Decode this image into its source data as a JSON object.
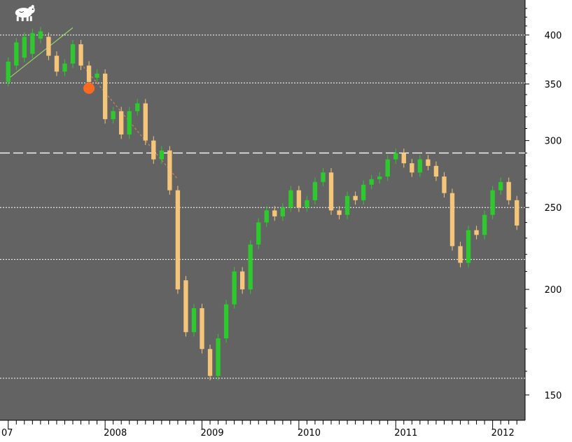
{
  "chart_data": {
    "type": "candlestick",
    "title": "",
    "xlabel": "",
    "ylabel": "",
    "y_scale": "log",
    "ylim": [
      140,
      440
    ],
    "xlim": [
      "2007-01",
      "2012-04"
    ],
    "x_tick_labels": [
      "07",
      "2008",
      "2009",
      "2010",
      "2011",
      "2012"
    ],
    "y_tick_values": [
      150,
      200,
      250,
      300,
      350,
      400
    ],
    "y_tick_labels": [
      "150",
      "200",
      "250",
      "300",
      "350",
      "400"
    ],
    "grid": false,
    "legend": "none",
    "colors": {
      "background": "#636363",
      "up": "#2ec92e",
      "down": "#f5c67a",
      "axis_bg": "#ffffff",
      "marker": "#ff6a20"
    },
    "series": [
      {
        "values": [
          [
            "2007-01",
            352,
            372
          ],
          [
            "2007-02",
            368,
            392
          ],
          [
            "2007-03",
            376,
            398
          ],
          [
            "2007-04",
            380,
            402
          ],
          [
            "2007-05",
            396,
            404
          ],
          [
            "2007-06",
            398,
            378
          ],
          [
            "2007-07",
            378,
            362
          ],
          [
            "2007-08",
            362,
            370
          ],
          [
            "2007-09",
            370,
            390
          ],
          [
            "2007-10",
            390,
            368
          ],
          [
            "2007-11",
            368,
            352
          ],
          [
            "2007-12",
            356,
            360
          ],
          [
            "2008-01",
            360,
            318
          ],
          [
            "2008-02",
            318,
            325
          ],
          [
            "2008-03",
            325,
            305
          ],
          [
            "2008-04",
            305,
            325
          ],
          [
            "2008-05",
            325,
            332
          ],
          [
            "2008-06",
            332,
            300
          ],
          [
            "2008-07",
            300,
            285
          ],
          [
            "2008-08",
            285,
            292
          ],
          [
            "2008-09",
            292,
            262
          ],
          [
            "2008-10",
            262,
            200
          ],
          [
            "2008-11",
            205,
            178
          ],
          [
            "2008-12",
            178,
            190
          ],
          [
            "2009-01",
            190,
            170
          ],
          [
            "2009-02",
            170,
            158
          ],
          [
            "2009-03",
            158,
            175
          ],
          [
            "2009-04",
            175,
            192
          ],
          [
            "2009-05",
            192,
            210
          ],
          [
            "2009-06",
            210,
            200
          ],
          [
            "2009-07",
            200,
            226
          ],
          [
            "2009-08",
            226,
            240
          ],
          [
            "2009-09",
            240,
            248
          ],
          [
            "2009-10",
            248,
            244
          ],
          [
            "2009-11",
            244,
            250
          ],
          [
            "2009-12",
            250,
            262
          ],
          [
            "2010-01",
            262,
            250
          ],
          [
            "2010-02",
            250,
            255
          ],
          [
            "2010-03",
            255,
            268
          ],
          [
            "2010-04",
            268,
            275
          ],
          [
            "2010-05",
            275,
            248
          ],
          [
            "2010-06",
            248,
            245
          ],
          [
            "2010-07",
            245,
            258
          ],
          [
            "2010-08",
            258,
            255
          ],
          [
            "2010-09",
            255,
            266
          ],
          [
            "2010-10",
            266,
            270
          ],
          [
            "2010-11",
            270,
            272
          ],
          [
            "2010-12",
            272,
            285
          ],
          [
            "2011-01",
            285,
            290
          ],
          [
            "2011-02",
            290,
            282
          ],
          [
            "2011-03",
            282,
            275
          ],
          [
            "2011-04",
            275,
            285
          ],
          [
            "2011-05",
            285,
            280
          ],
          [
            "2011-06",
            280,
            272
          ],
          [
            "2011-07",
            272,
            260
          ],
          [
            "2011-08",
            260,
            225
          ],
          [
            "2011-09",
            225,
            215
          ],
          [
            "2011-10",
            215,
            235
          ],
          [
            "2011-11",
            235,
            232
          ],
          [
            "2011-12",
            232,
            245
          ],
          [
            "2012-01",
            245,
            262
          ],
          [
            "2012-02",
            262,
            268
          ],
          [
            "2012-03",
            268,
            255
          ],
          [
            "2012-04",
            255,
            238
          ]
        ]
      }
    ],
    "annotations": [
      {
        "type": "hline",
        "y": 400,
        "style": "dotted"
      },
      {
        "type": "hline",
        "y": 351,
        "style": "dotted"
      },
      {
        "type": "hline",
        "y": 290,
        "style": "dashed"
      },
      {
        "type": "hline",
        "y": 250,
        "style": "dotted"
      },
      {
        "type": "hline",
        "y": 217,
        "style": "dotted"
      },
      {
        "type": "hline",
        "y": 157,
        "style": "dotted"
      },
      {
        "type": "trendline",
        "from": [
          "2007-01",
          355
        ],
        "to": [
          "2007-09",
          408
        ],
        "color": "#9be36b"
      },
      {
        "type": "trendline",
        "from": [
          "2007-10",
          370
        ],
        "to": [
          "2008-10",
          270
        ],
        "color": "#e88a55",
        "style": "dashed"
      },
      {
        "type": "marker",
        "x": "2007-11",
        "y": 346,
        "shape": "circle"
      },
      {
        "type": "icon",
        "name": "bear-icon",
        "x": "2007-01",
        "y": 425
      }
    ]
  }
}
